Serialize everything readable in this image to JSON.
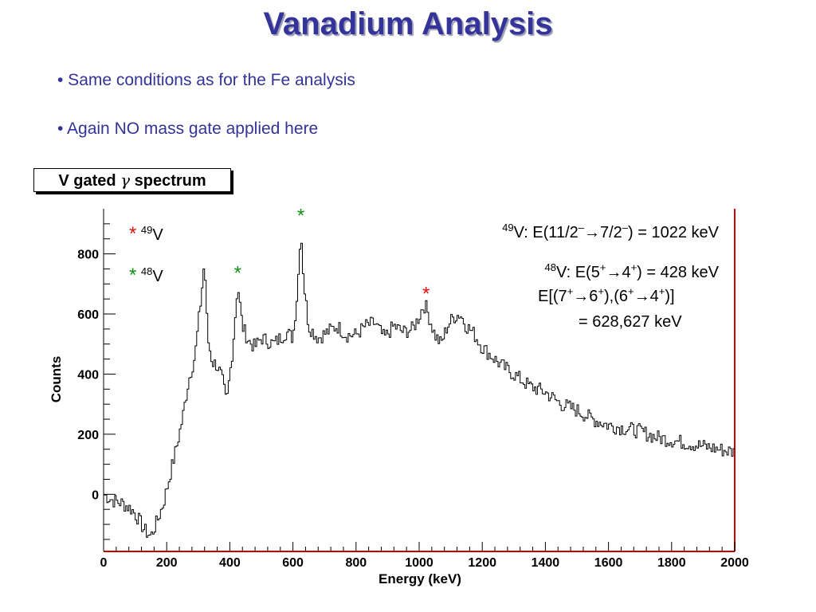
{
  "title": "Vanadium Analysis",
  "bullets": [
    "• Same conditions as for the Fe analysis",
    "• Again NO mass gate applied here"
  ],
  "histogram_title": {
    "prefix": "V gated ",
    "symbol": "γ",
    "suffix": " spectrum"
  },
  "legend": {
    "v49": {
      "star": "*",
      "mass": "49",
      "element": "V",
      "star_color": "#e01010"
    },
    "v48": {
      "star": "*",
      "mass": "48",
      "element": "V",
      "star_color": "#109010"
    }
  },
  "annotations": {
    "v49_mass": "49",
    "v49_text": "V: E(11/2",
    "v49_sup1": "–",
    "v49_mid": "→7/2",
    "v49_sup2": "–",
    "v49_end": ") = 1022 keV",
    "v48_mass": "48",
    "v48_text": "V: E(5",
    "v48_sup1": "+",
    "v48_mid": "→4",
    "v48_sup2": "+",
    "v48_end": ") = 428 keV",
    "v48_line2_a": "E[(7",
    "v48_line2_b": "→6",
    "v48_line2_c": "),(6",
    "v48_line2_d": "→4",
    "v48_line2_e": ")]",
    "plus": "+",
    "v48_line3": "= 628,627 keV"
  },
  "chart_data": {
    "type": "line",
    "title": "V gated γ spectrum",
    "xlabel": "Energy (keV)",
    "ylabel": "Counts",
    "xlim": [
      0,
      2000
    ],
    "ylim": [
      -190,
      950
    ],
    "x_ticks": [
      0,
      200,
      400,
      600,
      800,
      1000,
      1200,
      1400,
      1600,
      1800,
      2000
    ],
    "y_ticks": [
      0,
      200,
      400,
      600,
      800
    ],
    "grid": false,
    "line_color": "#000000",
    "frame_color": "#cc0000",
    "series": [
      {
        "x": [
          0,
          30,
          60,
          90,
          110,
          130,
          150,
          170,
          190,
          210,
          230,
          250,
          270,
          290,
          300,
          310,
          320,
          330,
          345,
          360,
          375,
          390,
          410,
          425,
          440,
          460,
          480,
          500,
          520,
          540,
          560,
          580,
          600,
          615,
          625,
          635,
          650,
          680,
          710,
          740,
          770,
          800,
          830,
          860,
          890,
          920,
          950,
          980,
          1000,
          1010,
          1020,
          1035,
          1050,
          1070,
          1090,
          1110,
          1130,
          1150,
          1170,
          1200,
          1230,
          1260,
          1300,
          1350,
          1400,
          1450,
          1500,
          1550,
          1600,
          1650,
          1700,
          1750,
          1800,
          1850,
          1900,
          1950,
          2000
        ],
        "y": [
          0,
          -20,
          -30,
          -50,
          -80,
          -120,
          -140,
          -90,
          -30,
          60,
          150,
          250,
          380,
          460,
          560,
          660,
          780,
          520,
          440,
          430,
          390,
          300,
          490,
          700,
          560,
          510,
          490,
          520,
          510,
          500,
          520,
          540,
          520,
          680,
          890,
          700,
          560,
          520,
          540,
          560,
          530,
          530,
          560,
          570,
          520,
          560,
          540,
          550,
          590,
          620,
          630,
          580,
          530,
          500,
          560,
          590,
          600,
          560,
          540,
          490,
          460,
          430,
          400,
          360,
          340,
          300,
          280,
          250,
          230,
          220,
          210,
          190,
          180,
          170,
          160,
          150,
          140
        ]
      }
    ],
    "markers": [
      {
        "x": 625,
        "y": 890,
        "label": "*",
        "color": "#109010"
      },
      {
        "x": 425,
        "y": 700,
        "label": "*",
        "color": "#109010"
      },
      {
        "x": 1022,
        "y": 630,
        "label": "*",
        "color": "#e01010"
      }
    ]
  }
}
